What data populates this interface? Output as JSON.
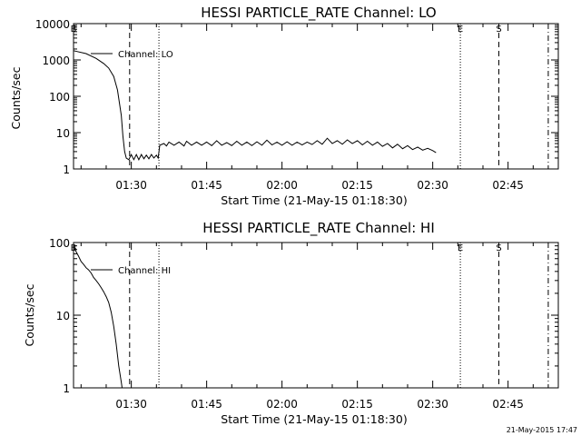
{
  "footer_timestamp": "21-May-2015 17:47",
  "chart_data": [
    {
      "type": "line",
      "title": "HESSI PARTICLE_RATE Channel: LO",
      "xlabel": "Start Time (21-May-15 01:18:30)",
      "ylabel": "Counts/sec",
      "y_scale": "log",
      "ylim": [
        1,
        10000
      ],
      "y_ticks": [
        {
          "value": 1,
          "label": "1"
        },
        {
          "value": 10,
          "label": "10"
        },
        {
          "value": 100,
          "label": "100"
        },
        {
          "value": 1000,
          "label": "1000"
        },
        {
          "value": 10000,
          "label": "10000"
        }
      ],
      "xlim": [
        "01:18:30",
        "02:55:00"
      ],
      "x_ticks": [
        "01:30",
        "01:45",
        "02:00",
        "02:15",
        "02:30",
        "02:45"
      ],
      "legend": {
        "label": "Channel: LO",
        "placement": "top-left"
      },
      "markers": [
        {
          "time": "01:18:30",
          "style": "solid",
          "label": "B"
        },
        {
          "time": "01:29:40",
          "style": "dashed",
          "label": ""
        },
        {
          "time": "01:35:30",
          "style": "dotted",
          "label": ""
        },
        {
          "time": "02:35:30",
          "style": "dotted",
          "label": "E"
        },
        {
          "time": "02:43:10",
          "style": "dashed",
          "label": "S"
        },
        {
          "time": "02:53:00",
          "style": "dashdot",
          "label": ""
        }
      ],
      "series": [
        {
          "name": "Channel: LO",
          "points": [
            [
              "01:18:30",
              1800
            ],
            [
              "01:21:00",
              1500
            ],
            [
              "01:23:00",
              1100
            ],
            [
              "01:24:30",
              800
            ],
            [
              "01:25:30",
              600
            ],
            [
              "01:26:30",
              350
            ],
            [
              "01:27:15",
              150
            ],
            [
              "01:28:00",
              30
            ],
            [
              "01:28:20",
              8
            ],
            [
              "01:28:40",
              3
            ],
            [
              "01:29:00",
              2
            ],
            [
              "01:29:30",
              1.8
            ],
            [
              "01:30:00",
              2.5
            ],
            [
              "01:30:30",
              1.8
            ],
            [
              "01:31:00",
              2.5
            ],
            [
              "01:31:30",
              1.8
            ],
            [
              "01:32:00",
              2.5
            ],
            [
              "01:32:30",
              1.9
            ],
            [
              "01:33:00",
              2.4
            ],
            [
              "01:33:30",
              1.9
            ],
            [
              "01:34:00",
              2.5
            ],
            [
              "01:34:30",
              2
            ],
            [
              "01:35:00",
              2.4
            ],
            [
              "01:35:20",
              2
            ],
            [
              "01:35:40",
              4.5
            ],
            [
              "01:36:30",
              5
            ],
            [
              "01:37:00",
              4.3
            ],
            [
              "01:37:30",
              5.5
            ],
            [
              "01:38:30",
              4.5
            ],
            [
              "01:39:30",
              5.5
            ],
            [
              "01:40:30",
              4.3
            ],
            [
              "01:41:00",
              5.8
            ],
            [
              "01:42:00",
              4.5
            ],
            [
              "01:43:00",
              5.5
            ],
            [
              "01:44:00",
              4.5
            ],
            [
              "01:45:00",
              5.5
            ],
            [
              "01:46:00",
              4.4
            ],
            [
              "01:47:00",
              6
            ],
            [
              "01:48:00",
              4.5
            ],
            [
              "01:49:00",
              5.3
            ],
            [
              "01:50:00",
              4.4
            ],
            [
              "01:51:00",
              5.8
            ],
            [
              "01:52:00",
              4.5
            ],
            [
              "01:53:00",
              5.5
            ],
            [
              "01:54:00",
              4.4
            ],
            [
              "01:55:00",
              5.6
            ],
            [
              "01:56:00",
              4.5
            ],
            [
              "01:57:00",
              6.2
            ],
            [
              "01:58:00",
              4.6
            ],
            [
              "01:59:00",
              5.5
            ],
            [
              "02:00:00",
              4.5
            ],
            [
              "02:01:00",
              5.6
            ],
            [
              "02:02:00",
              4.5
            ],
            [
              "02:03:00",
              5.5
            ],
            [
              "02:04:00",
              4.6
            ],
            [
              "02:05:00",
              5.5
            ],
            [
              "02:06:00",
              4.7
            ],
            [
              "02:07:00",
              6
            ],
            [
              "02:08:00",
              4.8
            ],
            [
              "02:09:00",
              7
            ],
            [
              "02:10:00",
              5
            ],
            [
              "02:11:00",
              6
            ],
            [
              "02:12:00",
              4.8
            ],
            [
              "02:13:00",
              6.3
            ],
            [
              "02:14:00",
              5
            ],
            [
              "02:15:00",
              6
            ],
            [
              "02:16:00",
              4.6
            ],
            [
              "02:17:00",
              5.8
            ],
            [
              "02:18:00",
              4.5
            ],
            [
              "02:19:00",
              5.5
            ],
            [
              "02:20:00",
              4.2
            ],
            [
              "02:21:00",
              5
            ],
            [
              "02:22:00",
              3.8
            ],
            [
              "02:23:00",
              4.8
            ],
            [
              "02:24:00",
              3.6
            ],
            [
              "02:25:00",
              4.4
            ],
            [
              "02:26:00",
              3.4
            ],
            [
              "02:27:00",
              4
            ],
            [
              "02:28:00",
              3.3
            ],
            [
              "02:29:00",
              3.7
            ],
            [
              "02:30:00",
              3.2
            ],
            [
              "02:30:40",
              2.8
            ]
          ]
        }
      ]
    },
    {
      "type": "line",
      "title": "HESSI PARTICLE_RATE Channel: HI",
      "xlabel": "Start Time (21-May-15 01:18:30)",
      "ylabel": "Counts/sec",
      "y_scale": "log",
      "ylim": [
        1,
        100
      ],
      "y_ticks": [
        {
          "value": 1,
          "label": "1"
        },
        {
          "value": 10,
          "label": "10"
        },
        {
          "value": 100,
          "label": "100"
        }
      ],
      "xlim": [
        "01:18:30",
        "02:55:00"
      ],
      "x_ticks": [
        "01:30",
        "01:45",
        "02:00",
        "02:15",
        "02:30",
        "02:45"
      ],
      "legend": {
        "label": "Channel: HI",
        "placement": "top-left"
      },
      "markers": [
        {
          "time": "01:18:30",
          "style": "solid",
          "label": "B"
        },
        {
          "time": "01:29:40",
          "style": "dashed",
          "label": ""
        },
        {
          "time": "01:35:30",
          "style": "dotted",
          "label": ""
        },
        {
          "time": "02:35:30",
          "style": "dotted",
          "label": "E"
        },
        {
          "time": "02:43:10",
          "style": "dashed",
          "label": "S"
        },
        {
          "time": "02:53:00",
          "style": "dashdot",
          "label": ""
        }
      ],
      "series": [
        {
          "name": "Channel: HI",
          "points": [
            [
              "01:18:30",
              90
            ],
            [
              "01:19:00",
              75
            ],
            [
              "01:19:30",
              65
            ],
            [
              "01:20:00",
              55
            ],
            [
              "01:20:30",
              50
            ],
            [
              "01:21:00",
              45
            ],
            [
              "01:21:30",
              42
            ],
            [
              "01:22:00",
              38
            ],
            [
              "01:22:30",
              33
            ],
            [
              "01:23:00",
              30
            ],
            [
              "01:23:30",
              27
            ],
            [
              "01:24:00",
              24
            ],
            [
              "01:24:30",
              21
            ],
            [
              "01:25:00",
              18
            ],
            [
              "01:25:30",
              15
            ],
            [
              "01:26:00",
              11
            ],
            [
              "01:26:30",
              7
            ],
            [
              "01:27:00",
              4
            ],
            [
              "01:27:30",
              2
            ],
            [
              "01:28:00",
              1.2
            ],
            [
              "01:28:10",
              1
            ]
          ]
        }
      ]
    }
  ]
}
